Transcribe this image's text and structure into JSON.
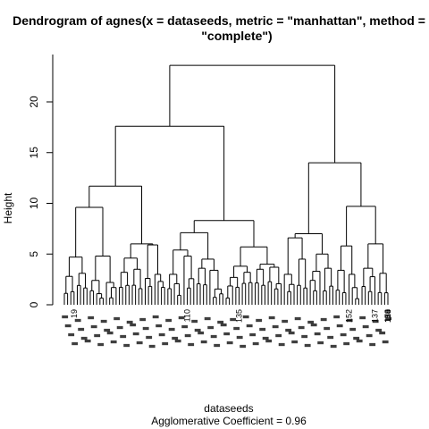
{
  "chart_data": {
    "type": "dendrogram",
    "title_line1": "Dendrogram of  agnes(x = dataseeds, metric = \"manhattan\", method =",
    "title_line2": "\"complete\")",
    "ylabel": "Height",
    "xlabel": "dataseeds",
    "subtitle": "Agglomerative Coefficient =  0.96",
    "ylim": [
      0,
      24
    ],
    "y_ticks": [
      0,
      5,
      10,
      15,
      20
    ],
    "tree": {
      "h": 23.6,
      "children": [
        {
          "h": 17.6,
          "children": [
            {
              "h": 11.7,
              "children": [
                {
                  "h": 9.6,
                  "children": [
                    {
                      "h": 4.7,
                      "children": [
                        {
                          "h": 2.8,
                          "n": 4
                        },
                        {
                          "h": 3.1,
                          "n": 4
                        }
                      ]
                    },
                    {
                      "h": 4.8,
                      "children": [
                        {
                          "h": 2.4,
                          "n": 5
                        },
                        {
                          "h": 2.2,
                          "n": 4
                        }
                      ]
                    }
                  ]
                },
                {
                  "h": 6.0,
                  "children": [
                    {
                      "h": 4.6,
                      "children": [
                        {
                          "h": 3.2,
                          "n": 4
                        },
                        {
                          "h": 3.5,
                          "n": 4
                        }
                      ]
                    },
                    {
                      "h": 5.9,
                      "children": [
                        {
                          "h": 2.6,
                          "n": 3
                        },
                        {
                          "h": 3.0,
                          "n": 4
                        }
                      ]
                    }
                  ]
                }
              ]
            },
            {
              "h": 8.3,
              "children": [
                {
                  "h": 7.1,
                  "children": [
                    {
                      "h": 5.4,
                      "children": [
                        {
                          "h": 3.0,
                          "n": 5
                        },
                        {
                          "h": 4.8,
                          "n": 4
                        }
                      ]
                    },
                    {
                      "h": 4.5,
                      "children": [
                        {
                          "h": 3.6,
                          "n": 4
                        },
                        {
                          "h": 3.4,
                          "n": 5
                        }
                      ]
                    }
                  ]
                },
                {
                  "h": 5.7,
                  "children": [
                    {
                      "h": 3.8,
                      "children": [
                        {
                          "h": 2.7,
                          "n": 5
                        },
                        {
                          "h": 3.2,
                          "n": 4
                        }
                      ]
                    },
                    {
                      "h": 4.0,
                      "children": [
                        {
                          "h": 3.5,
                          "n": 4
                        },
                        {
                          "h": 3.7,
                          "n": 5
                        }
                      ]
                    }
                  ]
                }
              ]
            }
          ]
        },
        {
          "h": 14.0,
          "children": [
            {
              "h": 7.0,
              "children": [
                {
                  "h": 6.6,
                  "children": [
                    {
                      "h": 3.0,
                      "n": 4
                    },
                    {
                      "h": 4.5,
                      "n": 4
                    }
                  ]
                },
                {
                  "h": 5.0,
                  "children": [
                    {
                      "h": 3.3,
                      "n": 4
                    },
                    {
                      "h": 3.6,
                      "n": 4
                    }
                  ]
                }
              ]
            },
            {
              "h": 9.7,
              "children": [
                {
                  "h": 5.8,
                  "children": [
                    {
                      "h": 3.4,
                      "n": 4
                    },
                    {
                      "h": 3.0,
                      "n": 4
                    }
                  ]
                },
                {
                  "h": 6.0,
                  "children": [
                    {
                      "h": 3.6,
                      "n": 5
                    },
                    {
                      "h": 3.1,
                      "n": 4
                    }
                  ]
                }
              ]
            }
          ]
        }
      ]
    },
    "visible_leaf_labels": [
      {
        "text": "19",
        "leaf_index": 3
      },
      {
        "text": "110",
        "leaf_index": 38
      },
      {
        "text": "135",
        "leaf_index": 54
      },
      {
        "text": "152",
        "leaf_index": 88
      },
      {
        "text": "137",
        "leaf_index": 96
      },
      {
        "text": "110",
        "leaf_index": 110
      },
      {
        "text": "58",
        "leaf_index": 122
      },
      {
        "text": "139",
        "leaf_index": 126
      },
      {
        "text": "174",
        "leaf_index": 137
      }
    ]
  }
}
